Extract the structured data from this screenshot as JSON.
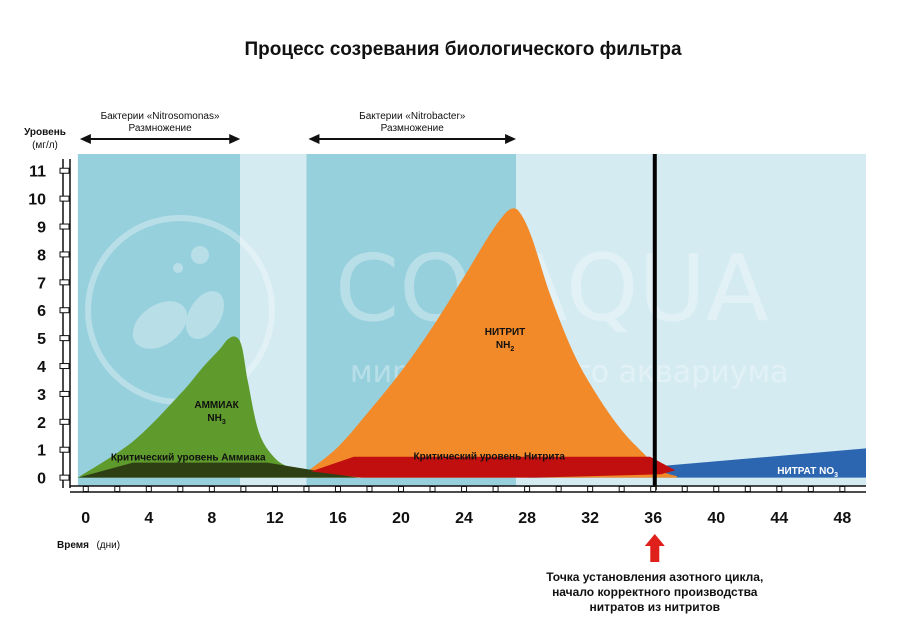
{
  "chart_data": {
    "type": "area",
    "title": "Процесс созревания биологического фильтра",
    "ylabel": "Уровень",
    "ylabel_unit": "(мг/л)",
    "xlabel": "Время",
    "xlabel_unit": "(дни)",
    "xlim": [
      -1,
      49.5
    ],
    "ylim": [
      -0.3,
      11.6
    ],
    "x_ticks": [
      0,
      4,
      8,
      12,
      16,
      20,
      24,
      28,
      32,
      36,
      40,
      44,
      48
    ],
    "y_ticks": [
      0,
      1,
      2,
      3,
      4,
      5,
      6,
      7,
      8,
      9,
      10,
      11
    ],
    "phases": [
      {
        "name": "nitrosomonas",
        "from": -0.5,
        "to": 9.8,
        "shade": "dark"
      },
      {
        "name": "gap1",
        "from": 9.8,
        "to": 14,
        "shade": "light"
      },
      {
        "name": "nitrobacter",
        "from": 14,
        "to": 27.3,
        "shade": "dark"
      },
      {
        "name": "after",
        "from": 27.3,
        "to": 49.5,
        "shade": "light"
      }
    ],
    "arrows": [
      {
        "from": -0.5,
        "to": 9.8,
        "line1": "Бактерии «Nitrosomonas»",
        "line2": "Размножение"
      },
      {
        "from": 14,
        "to": 27.3,
        "line1": "Бактерии «Nitrobacter»",
        "line2": "Размножение"
      }
    ],
    "series": [
      {
        "name": "АММИАК",
        "formula": "NH",
        "formula_sub": "3",
        "color": "#5e9a2c",
        "x": [
          -0.5,
          3,
          6,
          7.5,
          8.5,
          9,
          9.5,
          9.9,
          10.3,
          11,
          12,
          13,
          14,
          15
        ],
        "y": [
          0,
          1.3,
          3.0,
          4.0,
          4.6,
          4.95,
          5.05,
          4.7,
          3.4,
          1.6,
          0.7,
          0.35,
          0.15,
          0.05
        ]
      },
      {
        "name": "НИТРИТ",
        "formula": "NH",
        "formula_sub": "2",
        "color": "#f28a2a",
        "x": [
          14,
          16,
          18,
          20,
          22,
          24,
          25.5,
          26.5,
          27.1,
          27.6,
          28.3,
          29.5,
          31,
          32.5,
          34,
          35.5,
          36.5,
          37.5
        ],
        "y": [
          0.2,
          1.1,
          2.4,
          3.8,
          5.4,
          7.2,
          8.6,
          9.4,
          9.65,
          9.45,
          8.6,
          6.5,
          4.4,
          2.9,
          1.7,
          0.8,
          0.25,
          0.05
        ]
      },
      {
        "name": "НИТРАТ",
        "formula": "NO",
        "formula_sub": "3",
        "color": "#2d66b0",
        "x": [
          28,
          49.5
        ],
        "y": [
          0,
          1.05
        ]
      }
    ],
    "critical_levels": [
      {
        "label": "Критический уровень Аммиака",
        "value": 0.75,
        "color": "#2e3f14"
      },
      {
        "label": "Критический уровень Нитрита",
        "value": 0.75,
        "color": "#c10f0f"
      }
    ],
    "vertical_marker": {
      "x": 36.1,
      "color": "#000000"
    },
    "annotation": {
      "x": 36.1,
      "lines": [
        "Точка установления азотного цикла,",
        "начало корректного производства",
        "нитратов из нитритов"
      ]
    },
    "watermark": {
      "brand": "CO",
      "brand_sub": "2",
      "brand_rest": "AQUA",
      "tagline": "мир природного аквариума"
    },
    "colors": {
      "dark_phase": "#97d0dd",
      "light_phase": "#d4ebf2",
      "axis": "#111111",
      "red_arrow": "#e0201b"
    }
  }
}
